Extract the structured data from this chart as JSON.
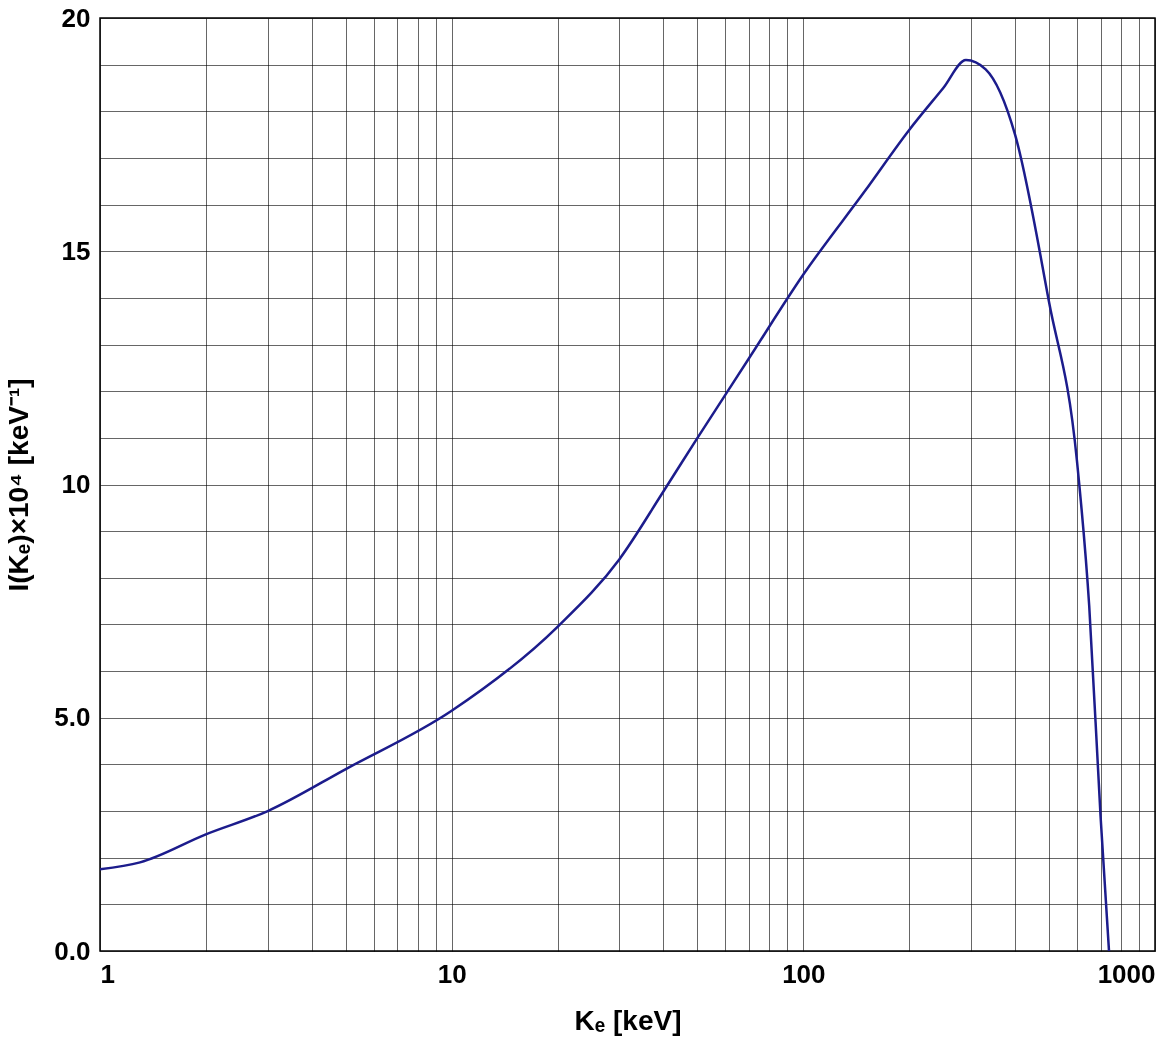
{
  "chart_data": {
    "type": "line",
    "xlabel": "Kₑ [keV]",
    "ylabel": "I(Kₑ)×10⁴ [keV⁻¹]",
    "log": "x",
    "grid": true,
    "marker": "none",
    "line_style": "solid",
    "xlim": [
      1,
      1000
    ],
    "ylim": [
      0,
      20
    ],
    "xticks": [
      1,
      {
        "value": 2,
        "label": null
      },
      {
        "value": 3,
        "label": null
      },
      {
        "value": 4,
        "label": null
      },
      {
        "value": 5,
        "label": null
      },
      {
        "value": 6,
        "label": null
      },
      {
        "value": 7,
        "label": null
      },
      {
        "value": 8,
        "label": null
      },
      {
        "value": 9,
        "label": null
      },
      10,
      {
        "value": 20,
        "label": null
      },
      {
        "value": 30,
        "label": null
      },
      {
        "value": 40,
        "label": null
      },
      {
        "value": 50,
        "label": null
      },
      {
        "value": 60,
        "label": null
      },
      {
        "value": 70,
        "label": null
      },
      {
        "value": 80,
        "label": null
      },
      {
        "value": 90,
        "label": null
      },
      100,
      {
        "value": 200,
        "label": null
      },
      {
        "value": 300,
        "label": null
      },
      {
        "value": 400,
        "label": null
      },
      {
        "value": 500,
        "label": null
      },
      {
        "value": 600,
        "label": null
      },
      {
        "value": 700,
        "label": null
      },
      {
        "value": 800,
        "label": null
      },
      {
        "value": 900,
        "label": null
      },
      1000
    ],
    "yticks": [
      {
        "value": 0,
        "label": "0.0"
      },
      {
        "value": 1,
        "label": null
      },
      {
        "value": 2,
        "label": null
      },
      {
        "value": 3,
        "label": null
      },
      {
        "value": 4,
        "label": null
      },
      {
        "value": 5,
        "label": "5.0"
      },
      {
        "value": 6,
        "label": null
      },
      {
        "value": 7,
        "label": null
      },
      {
        "value": 8,
        "label": null
      },
      {
        "value": 9,
        "label": null
      },
      10,
      {
        "value": 11,
        "label": null
      },
      {
        "value": 12,
        "label": null
      },
      {
        "value": 13,
        "label": null
      },
      {
        "value": 14,
        "label": null
      },
      15,
      {
        "value": 16,
        "label": null
      },
      {
        "value": 17,
        "label": null
      },
      {
        "value": 18,
        "label": null
      },
      {
        "value": 19,
        "label": null
      },
      20
    ],
    "series": [
      {
        "color": "#1c1c8c",
        "x": [
          1,
          1.3,
          2,
          3,
          5,
          10,
          20,
          30,
          40,
          50,
          70,
          100,
          150,
          200,
          250,
          290,
          330,
          400,
          500,
          600,
          650,
          700,
          740
        ],
        "values": [
          1.75,
          1.9,
          2.5,
          3.0,
          3.9,
          5.15,
          6.95,
          8.4,
          9.85,
          11.0,
          12.7,
          14.5,
          16.3,
          17.6,
          18.5,
          19.1,
          18.9,
          17.5,
          13.9,
          10.5,
          7.4,
          2.9,
          0
        ]
      }
    ]
  }
}
